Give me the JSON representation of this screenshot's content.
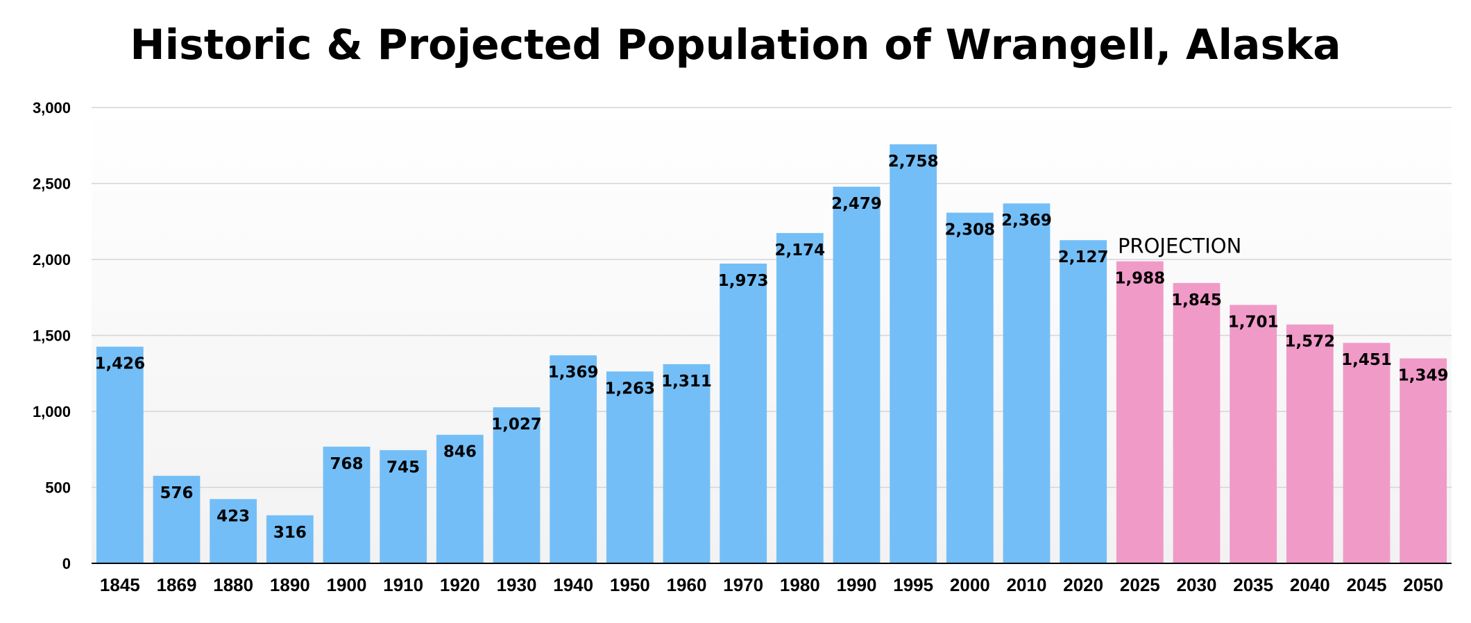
{
  "chart_data": {
    "type": "bar",
    "title": "Historic & Projected Population of Wrangell, Alaska",
    "xlabel": "",
    "ylabel": "",
    "ylim": [
      0,
      3000
    ],
    "yticks": [
      0,
      500,
      1000,
      1500,
      2000,
      2500,
      3000
    ],
    "ytick_labels": [
      "0",
      "500",
      "1,000",
      "1,500",
      "2,000",
      "2,500",
      "3,000"
    ],
    "grid": true,
    "categories": [
      "1845",
      "1869",
      "1880",
      "1890",
      "1900",
      "1910",
      "1920",
      "1930",
      "1940",
      "1950",
      "1960",
      "1970",
      "1980",
      "1990",
      "1995",
      "2000",
      "2010",
      "2020",
      "2025",
      "2030",
      "2035",
      "2040",
      "2045",
      "2050"
    ],
    "values": [
      1426,
      576,
      423,
      316,
      768,
      745,
      846,
      1027,
      1369,
      1263,
      1311,
      1973,
      2174,
      2479,
      2758,
      2308,
      2369,
      2127,
      1988,
      1845,
      1701,
      1572,
      1451,
      1349
    ],
    "value_labels": [
      "1,426",
      "576",
      "423",
      "316",
      "768",
      "745",
      "846",
      "1,027",
      "1,369",
      "1,263",
      "1,311",
      "1,973",
      "2,174",
      "2,479",
      "2,758",
      "2,308",
      "2,369",
      "2,127",
      "1,988",
      "1,845",
      "1,701",
      "1,572",
      "1,451",
      "1,349"
    ],
    "series_kind": [
      "historic",
      "historic",
      "historic",
      "historic",
      "historic",
      "historic",
      "historic",
      "historic",
      "historic",
      "historic",
      "historic",
      "historic",
      "historic",
      "historic",
      "historic",
      "historic",
      "historic",
      "historic",
      "projection",
      "projection",
      "projection",
      "projection",
      "projection",
      "projection"
    ],
    "colors": {
      "historic": "#73bef7",
      "projection": "#f09ac8",
      "grid": "#d4d4d4",
      "axis": "#000000",
      "plot_background_top": "#ffffff",
      "plot_background_bottom": "#f2f2f2"
    },
    "annotations": [
      {
        "text": "PROJECTION",
        "category": "2025"
      }
    ]
  }
}
